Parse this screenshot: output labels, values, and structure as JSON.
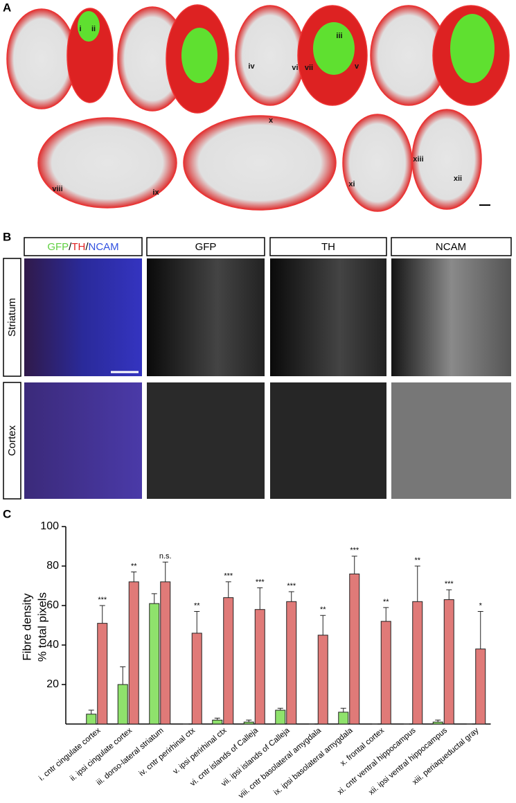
{
  "panel_a": {
    "label": "A",
    "regions": [
      "i",
      "ii",
      "iii",
      "iv",
      "v",
      "vi",
      "vii",
      "viii",
      "ix",
      "x",
      "xi",
      "xii",
      "xiii"
    ]
  },
  "panel_b": {
    "label": "B",
    "merge_header": [
      "GFP",
      "/",
      "TH",
      "/",
      "NCAM"
    ],
    "headers": [
      "GFP",
      "TH",
      "NCAM"
    ],
    "rows": [
      "Striatum",
      "Cortex"
    ]
  },
  "chart_data": {
    "type": "bar",
    "panel_label": "C",
    "y_label": [
      "Fibre density",
      "% total pixels"
    ],
    "categories": [
      "i. cntr cingulate cortex",
      "ii. ipsi cingulate cortex",
      "iii. dorso-lateral striatum",
      "iv. cntr perirhinal ctx",
      "v. ipsi perirhinal ctx",
      "vi. cntr islands of Calleja",
      "vii. ipsi islands of Calleja",
      "viii. cntr basolateral amygdala",
      "ix. ipsi basolateral amygdala",
      "x. frontal cortex",
      "xi. cntr ventral hippocampus",
      "xii. ipsi ventral hippocampus",
      "xiii. periaqueductal gray"
    ],
    "series": [
      {
        "color": "#8fe26c",
        "values": [
          5,
          20,
          61,
          0,
          2,
          1,
          7,
          0,
          6,
          0,
          0,
          1,
          0
        ],
        "errors": [
          2,
          9,
          5,
          0,
          1,
          1,
          1,
          0,
          2,
          0,
          0,
          1,
          0
        ]
      },
      {
        "color": "#e07a78",
        "values": [
          51,
          72,
          72,
          46,
          64,
          58,
          62,
          45,
          76,
          52,
          62,
          63,
          38
        ],
        "errors": [
          9,
          5,
          10,
          11,
          8,
          11,
          5,
          10,
          9,
          7,
          18,
          5,
          19
        ]
      }
    ],
    "significance": [
      "***",
      "**",
      "n.s.",
      "**",
      "***",
      "***",
      "***",
      "**",
      "***",
      "**",
      "**",
      "***",
      "*"
    ],
    "ylim": [
      0,
      100
    ],
    "yticks": [
      20,
      40,
      60,
      80,
      100
    ]
  }
}
